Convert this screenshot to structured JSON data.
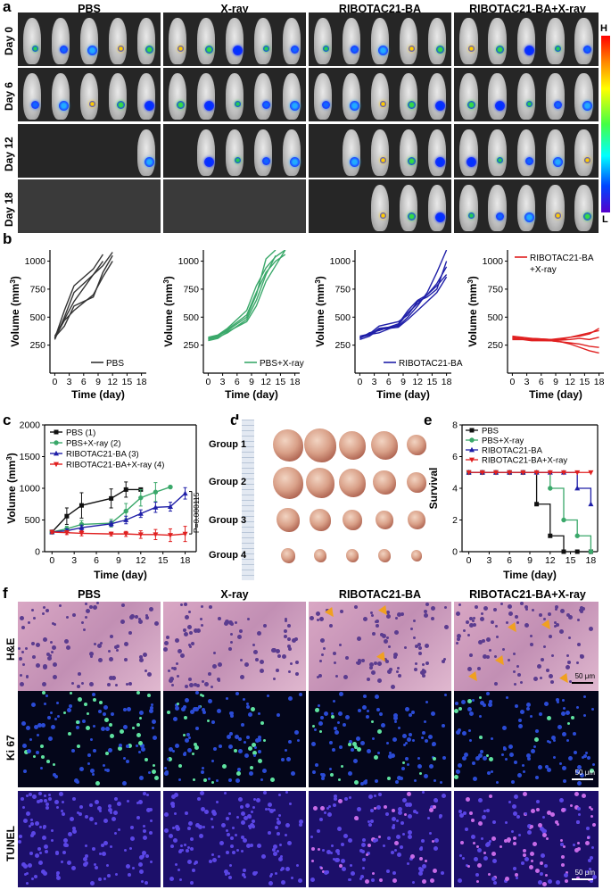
{
  "panel_labels": {
    "a": "a",
    "b": "b",
    "c": "c",
    "d": "d",
    "e": "e",
    "f": "f"
  },
  "panel_a": {
    "columns": [
      "PBS",
      "X-ray",
      "RIBOTAC21-BA",
      "RIBOTAC21-BA+X-ray"
    ],
    "rows": [
      "Day 0",
      "Day 6",
      "Day 12",
      "Day 18"
    ],
    "mice_visible": [
      [
        5,
        5,
        5,
        5
      ],
      [
        5,
        5,
        5,
        5
      ],
      [
        1,
        4,
        4,
        5
      ],
      [
        0,
        0,
        3,
        5
      ]
    ],
    "colorbar": {
      "high": "H",
      "low": "L"
    }
  },
  "panel_b": {
    "ylabel": "Volume (mm",
    "ylabel_sup": "3",
    "ylabel_end": ")",
    "xlabel": "Time (day)",
    "x_ticks": [
      "0",
      "3",
      "6",
      "9",
      "12",
      "15",
      "18"
    ],
    "y_ticks": [
      "250",
      "500",
      "750",
      "1000"
    ],
    "legends": [
      "PBS",
      "PBS+X-ray",
      "RIBOTAC21-BA",
      "RIBOTAC21-BA",
      "+X-ray"
    ],
    "colors": [
      "#333333",
      "#3aa86a",
      "#1f1fa8",
      "#e02020"
    ]
  },
  "panel_c": {
    "ylabel": "Volume (mm",
    "ylabel_sup": "3",
    "ylabel_end": ")",
    "xlabel": "Time (day)",
    "annotation": "P=0.000115",
    "x_ticks": [
      "0",
      "3",
      "6",
      "9",
      "12",
      "15",
      "18"
    ],
    "y_ticks": [
      "0",
      "500",
      "1000",
      "1500",
      "2000"
    ]
  },
  "panel_d": {
    "groups": [
      "Group 1",
      "Group 2",
      "Group 3",
      "Group 4"
    ]
  },
  "panel_e": {
    "ylabel": "Survival",
    "xlabel": "Time (day)",
    "x_ticks": [
      "0",
      "3",
      "6",
      "9",
      "12",
      "15",
      "18"
    ],
    "y_ticks": [
      "0",
      "2",
      "4",
      "6",
      "8"
    ]
  },
  "panel_f": {
    "columns": [
      "PBS",
      "X-ray",
      "RIBOTAC21-BA",
      "RIBOTAC21-BA+X-ray"
    ],
    "rows": [
      "H&E",
      "Ki 67",
      "TUNEL"
    ],
    "scalebar": "50 μm"
  },
  "chart_data": [
    {
      "type": "line",
      "panel": "b-1",
      "xlabel": "Time (day)",
      "ylabel": "Volume (mm3)",
      "xlim": [
        -1,
        19
      ],
      "ylim": [
        0,
        1100
      ],
      "color": "#333333",
      "legend": "PBS",
      "series": [
        {
          "x": [
            0,
            2,
            4,
            8,
            10
          ],
          "values": [
            310,
            560,
            780,
            930,
            1060
          ]
        },
        {
          "x": [
            0,
            2,
            4,
            8,
            10,
            12
          ],
          "values": [
            330,
            480,
            640,
            880,
            960,
            1080
          ]
        },
        {
          "x": [
            0,
            2,
            4,
            8,
            10,
            12
          ],
          "values": [
            320,
            420,
            600,
            680,
            900,
            1050
          ]
        },
        {
          "x": [
            0,
            2,
            4,
            8,
            10
          ],
          "values": [
            300,
            500,
            720,
            880,
            1000
          ]
        },
        {
          "x": [
            0,
            2,
            4,
            8,
            10,
            12
          ],
          "values": [
            315,
            470,
            560,
            700,
            860,
            1000
          ]
        }
      ]
    },
    {
      "type": "line",
      "panel": "b-2",
      "xlabel": "Time (day)",
      "ylabel": "Volume (mm3)",
      "xlim": [
        -1,
        19
      ],
      "ylim": [
        0,
        1100
      ],
      "color": "#3aa86a",
      "legend": "PBS+X-ray",
      "series": [
        {
          "x": [
            0,
            2,
            4,
            8,
            10,
            12,
            14
          ],
          "values": [
            310,
            330,
            380,
            500,
            700,
            1020,
            1100
          ]
        },
        {
          "x": [
            0,
            2,
            4,
            8,
            10,
            12,
            14
          ],
          "values": [
            300,
            320,
            360,
            480,
            650,
            880,
            1050
          ]
        },
        {
          "x": [
            0,
            2,
            4,
            8,
            10,
            12,
            14,
            16
          ],
          "values": [
            320,
            340,
            400,
            560,
            780,
            940,
            1040,
            1100
          ]
        },
        {
          "x": [
            0,
            2,
            4,
            8,
            10,
            12,
            14,
            16
          ],
          "values": [
            290,
            310,
            370,
            460,
            600,
            820,
            960,
            1100
          ]
        },
        {
          "x": [
            0,
            2,
            4,
            8,
            10,
            12,
            14,
            16
          ],
          "values": [
            305,
            335,
            390,
            520,
            720,
            900,
            1000,
            1060
          ]
        }
      ]
    },
    {
      "type": "line",
      "panel": "b-3",
      "xlabel": "Time (day)",
      "ylabel": "Volume (mm3)",
      "xlim": [
        -1,
        19
      ],
      "ylim": [
        0,
        1100
      ],
      "color": "#1f1fa8",
      "legend": "RIBOTAC21-BA",
      "series": [
        {
          "x": [
            0,
            2,
            4,
            8,
            10,
            12,
            14,
            16,
            18
          ],
          "values": [
            320,
            340,
            400,
            420,
            500,
            600,
            720,
            900,
            1100
          ]
        },
        {
          "x": [
            0,
            2,
            4,
            8,
            10,
            12,
            14,
            16,
            18
          ],
          "values": [
            310,
            360,
            380,
            440,
            560,
            650,
            700,
            780,
            880
          ]
        },
        {
          "x": [
            0,
            2,
            4,
            8,
            10,
            12,
            14,
            16,
            18
          ],
          "values": [
            330,
            350,
            420,
            460,
            520,
            640,
            680,
            750,
            1000
          ]
        },
        {
          "x": [
            0,
            2,
            4,
            8,
            10,
            12,
            14,
            16,
            18
          ],
          "values": [
            300,
            330,
            390,
            410,
            480,
            560,
            640,
            720,
            860
          ]
        },
        {
          "x": [
            0,
            2,
            4,
            8,
            10,
            12,
            14,
            16,
            18
          ],
          "values": [
            315,
            345,
            360,
            430,
            540,
            620,
            700,
            800,
            950
          ]
        }
      ]
    },
    {
      "type": "line",
      "panel": "b-4",
      "xlabel": "Time (day)",
      "ylabel": "Volume (mm3)",
      "xlim": [
        -1,
        19
      ],
      "ylim": [
        0,
        1100
      ],
      "color": "#e02020",
      "legend": "RIBOTAC21-BA +X-ray",
      "series": [
        {
          "x": [
            0,
            2,
            4,
            8,
            10,
            12,
            14,
            16,
            18
          ],
          "values": [
            330,
            320,
            310,
            300,
            300,
            320,
            340,
            360,
            380
          ]
        },
        {
          "x": [
            0,
            2,
            4,
            8,
            10,
            12,
            14,
            16,
            18
          ],
          "values": [
            310,
            300,
            290,
            290,
            280,
            270,
            260,
            240,
            230
          ]
        },
        {
          "x": [
            0,
            2,
            4,
            8,
            10,
            12,
            14,
            16,
            18
          ],
          "values": [
            320,
            310,
            300,
            290,
            280,
            260,
            230,
            200,
            180
          ]
        },
        {
          "x": [
            0,
            2,
            4,
            8,
            10,
            12,
            14,
            16,
            18
          ],
          "values": [
            300,
            300,
            310,
            300,
            310,
            320,
            330,
            350,
            400
          ]
        },
        {
          "x": [
            0,
            2,
            4,
            8,
            10,
            12,
            14,
            16,
            18
          ],
          "values": [
            315,
            305,
            295,
            290,
            295,
            300,
            310,
            300,
            320
          ]
        }
      ]
    },
    {
      "type": "line",
      "panel": "c",
      "xlabel": "Time (day)",
      "ylabel": "Volume (mm3)",
      "xlim": [
        -1,
        19.5
      ],
      "ylim": [
        0,
        2000
      ],
      "series": [
        {
          "name": "PBS (1)",
          "color": "#111111",
          "marker": "square",
          "x": [
            0,
            2,
            4,
            8,
            10,
            12
          ],
          "values": [
            310,
            560,
            730,
            840,
            980,
            980
          ],
          "err": [
            30,
            130,
            200,
            150,
            120,
            0
          ]
        },
        {
          "name": "PBS+X-ray (2)",
          "color": "#3aa86a",
          "marker": "circle",
          "x": [
            0,
            2,
            4,
            8,
            10,
            12,
            14,
            16
          ],
          "values": [
            310,
            360,
            430,
            450,
            640,
            850,
            940,
            1020
          ],
          "err": [
            20,
            40,
            60,
            60,
            120,
            130,
            150,
            0
          ]
        },
        {
          "name": "RIBOTAC21-BA (3)",
          "color": "#1f1fa8",
          "marker": "triangle",
          "x": [
            0,
            2,
            4,
            8,
            10,
            12,
            14,
            16,
            18
          ],
          "values": [
            310,
            330,
            380,
            440,
            500,
            600,
            700,
            710,
            920
          ],
          "err": [
            20,
            30,
            40,
            40,
            60,
            60,
            80,
            70,
            90
          ]
        },
        {
          "name": "RIBOTAC21-BA+X-ray (4)",
          "color": "#e02020",
          "marker": "triangle-down",
          "x": [
            0,
            2,
            4,
            8,
            10,
            12,
            14,
            16,
            18
          ],
          "values": [
            310,
            300,
            290,
            280,
            280,
            270,
            270,
            260,
            280
          ],
          "err": [
            20,
            30,
            40,
            30,
            40,
            60,
            80,
            100,
            120
          ]
        }
      ]
    },
    {
      "type": "line",
      "panel": "e",
      "xlabel": "Time (day)",
      "ylabel": "Survival",
      "xlim": [
        -1,
        19
      ],
      "ylim": [
        0,
        8
      ],
      "series": [
        {
          "name": "PBS",
          "color": "#111111",
          "marker": "square",
          "x": [
            0,
            2,
            4,
            6,
            8,
            10,
            12,
            14,
            16,
            18
          ],
          "values": [
            5,
            5,
            5,
            5,
            5,
            3,
            1,
            0,
            0,
            0
          ]
        },
        {
          "name": "PBS+X-ray",
          "color": "#3aa86a",
          "marker": "circle",
          "x": [
            0,
            2,
            4,
            6,
            8,
            10,
            12,
            14,
            16,
            18
          ],
          "values": [
            5,
            5,
            5,
            5,
            5,
            5,
            4,
            2,
            1,
            0
          ]
        },
        {
          "name": "RIBOTAC21-BA",
          "color": "#1f1fa8",
          "marker": "triangle",
          "x": [
            0,
            2,
            4,
            6,
            8,
            10,
            12,
            14,
            16,
            18
          ],
          "values": [
            5,
            5,
            5,
            5,
            5,
            5,
            5,
            5,
            4,
            3
          ]
        },
        {
          "name": "RIBOTAC21-BA+X-ray",
          "color": "#e02020",
          "marker": "triangle-down",
          "x": [
            0,
            2,
            4,
            6,
            8,
            10,
            12,
            14,
            16,
            18
          ],
          "values": [
            5,
            5,
            5,
            5,
            5,
            5,
            5,
            5,
            5,
            5
          ]
        }
      ]
    }
  ]
}
